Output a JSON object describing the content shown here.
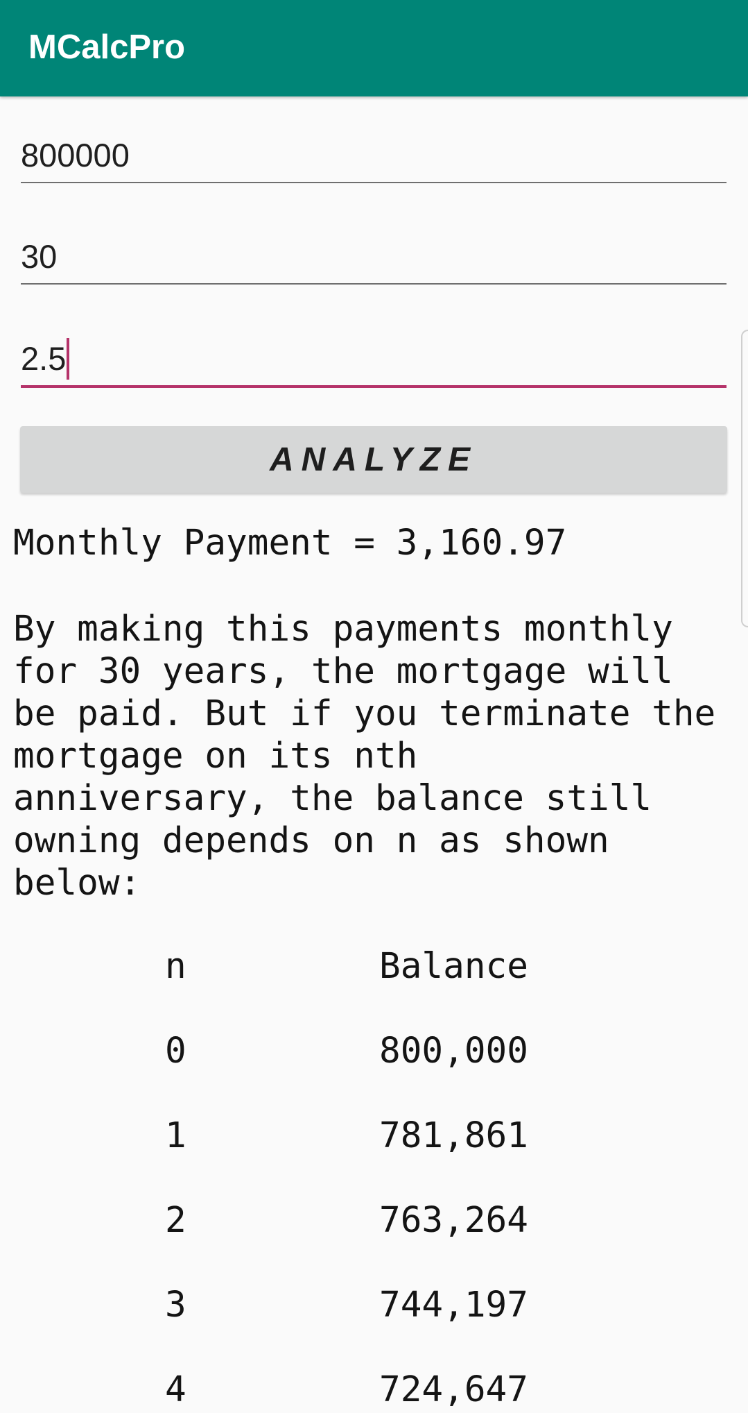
{
  "app": {
    "title": "MCalcPro",
    "colors": {
      "toolbar": "#008577",
      "accent": "#b5336a"
    }
  },
  "form": {
    "principal_value": "800000",
    "amortization_value": "30",
    "interest_value": "2.5"
  },
  "actions": {
    "analyze_label": "ANALYZE"
  },
  "result": {
    "monthly_payment": "Monthly Payment = 3,160.97",
    "description": "By making this payments monthly\nfor 30 years, the mortgage will\nbe paid. But if you terminate the\nmortgage on its nth\nanniversary, the balance still\nowning depends on n as shown\nbelow:"
  },
  "table": {
    "headers": [
      "n",
      "Balance"
    ],
    "rows": [
      [
        "0",
        "800,000"
      ],
      [
        "1",
        "781,861"
      ],
      [
        "2",
        "763,264"
      ],
      [
        "3",
        "744,197"
      ],
      [
        "4",
        "724,647"
      ]
    ]
  }
}
